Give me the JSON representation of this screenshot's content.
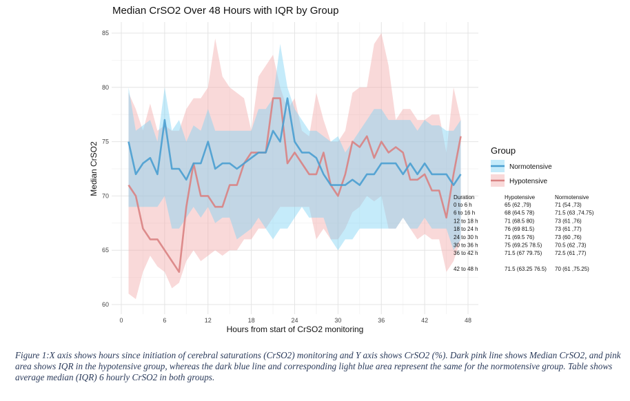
{
  "chart_data": {
    "type": "line",
    "title": "Median CrSO2 Over 48 Hours with IQR by Group",
    "xlabel": "Hours from start of CrSO2 monitoring",
    "ylabel": "Median CrSO2",
    "xlim": [
      0,
      48
    ],
    "ylim": [
      60,
      85
    ],
    "xticks": [
      0,
      6,
      12,
      18,
      24,
      30,
      36,
      42,
      48
    ],
    "yticks": [
      60,
      65,
      70,
      75,
      80,
      85
    ],
    "grid": true,
    "legend": {
      "title": "Group",
      "position": "right"
    },
    "x": [
      1,
      2,
      3,
      4,
      5,
      6,
      7,
      8,
      9,
      10,
      11,
      12,
      13,
      14,
      15,
      16,
      17,
      18,
      19,
      20,
      21,
      22,
      23,
      24,
      25,
      26,
      27,
      28,
      29,
      30,
      31,
      32,
      33,
      34,
      35,
      36,
      37,
      38,
      39,
      40,
      41,
      42,
      43,
      44,
      45,
      46,
      47
    ],
    "series": [
      {
        "name": "Normotensive",
        "color": "#4a9fd0",
        "band_color": "#7fd3f5",
        "median": [
          75,
          72,
          73,
          73.5,
          72,
          77,
          72.5,
          72.5,
          71.5,
          73,
          73,
          75,
          72.5,
          73,
          73,
          72.5,
          73,
          73.5,
          74,
          74,
          76,
          75,
          79,
          75,
          74,
          74,
          73.5,
          72,
          71,
          71,
          71,
          71.5,
          71,
          72,
          72,
          73,
          73,
          73,
          72,
          73,
          72,
          73,
          72,
          72,
          72,
          71,
          72
        ],
        "q1": [
          69,
          69,
          69,
          69,
          69,
          70,
          67,
          67,
          68,
          69,
          68,
          69,
          67.5,
          68,
          68,
          66,
          66.5,
          67,
          68,
          67,
          66,
          67,
          67,
          68,
          69,
          68,
          68,
          68,
          66,
          65,
          66,
          66,
          67,
          67,
          67,
          67,
          67,
          67,
          68,
          67,
          67,
          68,
          67,
          67,
          67,
          65,
          66
        ],
        "q3": [
          80,
          76,
          76.5,
          77,
          75,
          80,
          76,
          77,
          75,
          76.5,
          76,
          78,
          76,
          76,
          76,
          76,
          76,
          76,
          78,
          78,
          79,
          84,
          80,
          78,
          77,
          76,
          76,
          75.5,
          75,
          75.5,
          74,
          75,
          76,
          77,
          78,
          78,
          77,
          77,
          77,
          77,
          76,
          77,
          76.5,
          76.5,
          76,
          76,
          77
        ]
      },
      {
        "name": "Hypotensive",
        "color": "#d98282",
        "band_color": "#f2aaaa",
        "median": [
          71,
          70,
          67,
          66,
          66,
          65,
          64,
          63,
          69,
          73,
          70,
          70,
          69,
          69,
          71,
          71,
          73,
          74,
          74,
          74,
          79,
          79,
          73,
          74,
          73,
          72,
          72,
          74,
          71,
          70,
          72,
          75,
          74.5,
          75.5,
          73.5,
          75,
          74,
          74.5,
          74,
          71.5,
          71.5,
          72,
          70.5,
          70.5,
          68,
          72,
          75.5
        ],
        "q1": [
          61,
          60.5,
          63,
          64.5,
          63.5,
          63,
          61.5,
          62,
          64,
          65,
          64,
          64.5,
          65,
          64.5,
          65,
          65,
          66,
          66,
          67,
          67,
          68,
          69,
          69,
          69,
          69,
          69,
          66,
          67,
          66,
          66,
          67,
          68.5,
          69,
          70,
          69.5,
          70,
          67,
          67,
          68,
          67,
          66,
          66.5,
          66,
          66,
          63,
          64,
          66
        ],
        "q3": [
          79.5,
          78,
          76,
          78.5,
          76,
          76.5,
          76,
          76,
          78,
          79,
          79,
          80,
          84.5,
          81,
          80,
          79.5,
          79,
          76,
          81,
          82,
          83,
          80,
          78,
          79,
          76,
          75.5,
          79.5,
          77,
          75,
          75,
          76,
          79.5,
          80,
          80,
          84,
          85,
          82,
          77,
          78,
          78,
          77,
          77,
          77.5,
          77.5,
          74,
          80,
          77
        ]
      }
    ],
    "table": {
      "headers": [
        "Duration",
        "Hypotensive",
        "Normotensive"
      ],
      "rows": [
        [
          "0 to 6 h",
          "65 (62 ,79)",
          "71 (54 ,73)"
        ],
        [
          "6 to 16 h",
          "68 (64.5 78)",
          "71.5 (63 ,74.75)"
        ],
        [
          "12 to 18 h",
          "71 (68.5 80)",
          "73 (61 ,76)"
        ],
        [
          "18 to 24 h",
          "76 (69 81.5)",
          "73 (61 ,77)"
        ],
        [
          "24 to 30 h",
          "71 (69.5 76)",
          "73 (60 ,76)"
        ],
        [
          "30 to 36 h",
          "75 (69.25 78.5)",
          "70.5 (62 ,73)"
        ],
        [
          "36 to 42 h",
          "71.5 (67 79.75)",
          "72.5 (61 ,77)"
        ],
        [
          "42 to 48 h",
          "71.5 (63.25 76.5)",
          "70 (61 ,75.25)"
        ]
      ]
    }
  },
  "caption": "Figure 1:X axis shows hours since initiation of cerebral saturations (CrSO2) monitoring and Y axis shows CrSO2 (%). Dark pink line shows Median CrSO2, and pink area shows IQR in the hypotensive group, whereas the dark blue line and corresponding light blue area represent the same for the normotensive group. Table shows average median (IQR) 6 hourly CrSO2 in both groups."
}
